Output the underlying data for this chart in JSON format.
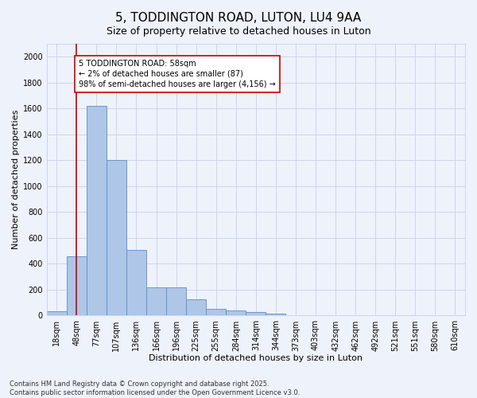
{
  "title": "5, TODDINGTON ROAD, LUTON, LU4 9AA",
  "subtitle": "Size of property relative to detached houses in Luton",
  "xlabel": "Distribution of detached houses by size in Luton",
  "ylabel": "Number of detached properties",
  "categories": [
    "18sqm",
    "48sqm",
    "77sqm",
    "107sqm",
    "136sqm",
    "166sqm",
    "196sqm",
    "225sqm",
    "255sqm",
    "284sqm",
    "314sqm",
    "344sqm",
    "373sqm",
    "403sqm",
    "432sqm",
    "462sqm",
    "492sqm",
    "521sqm",
    "551sqm",
    "580sqm",
    "610sqm"
  ],
  "values": [
    35,
    455,
    1620,
    1205,
    505,
    220,
    220,
    125,
    50,
    40,
    28,
    18,
    0,
    0,
    0,
    0,
    0,
    0,
    0,
    0,
    0
  ],
  "bar_color": "#aec6e8",
  "bar_edge_color": "#5b8fc9",
  "vline_x": 1.0,
  "vline_color": "#cc0000",
  "annotation_text": "5 TODDINGTON ROAD: 58sqm\n← 2% of detached houses are smaller (87)\n98% of semi-detached houses are larger (4,156) →",
  "annotation_box_color": "#cc0000",
  "annotation_box_facecolor": "white",
  "ylim": [
    0,
    2100
  ],
  "yticks": [
    0,
    200,
    400,
    600,
    800,
    1000,
    1200,
    1400,
    1600,
    1800,
    2000
  ],
  "footer_text": "Contains HM Land Registry data © Crown copyright and database right 2025.\nContains public sector information licensed under the Open Government Licence v3.0.",
  "bg_color": "#eef2fb",
  "grid_color": "#c8d0e8",
  "title_fontsize": 11,
  "subtitle_fontsize": 9,
  "axis_label_fontsize": 8,
  "tick_fontsize": 7,
  "annotation_fontsize": 7,
  "footer_fontsize": 6
}
